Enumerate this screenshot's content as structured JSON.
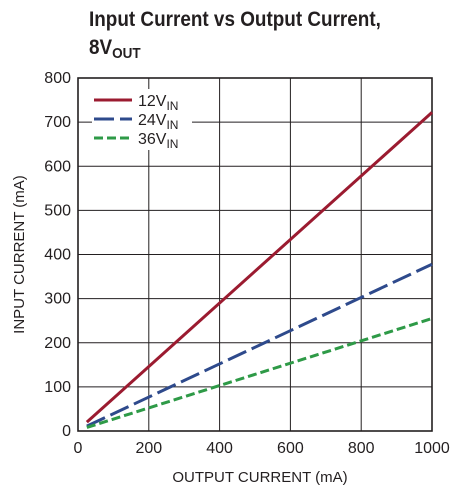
{
  "chart_data": {
    "type": "line",
    "title_line1": "Input Current vs Output Current,",
    "title_line2_base": "8V",
    "title_line2_sub": "OUT",
    "xlabel": "OUTPUT CURRENT (mA)",
    "ylabel": "INPUT CURRENT (mA)",
    "xlim": [
      0,
      1000
    ],
    "ylim": [
      0,
      800
    ],
    "xticks": [
      0,
      200,
      400,
      600,
      800,
      1000
    ],
    "yticks": [
      0,
      100,
      200,
      300,
      400,
      500,
      600,
      700,
      800
    ],
    "grid": true,
    "legend_position": "top-left",
    "series": [
      {
        "name_base": "12V",
        "name_sub": "IN",
        "color": "#9b1b30",
        "dash": "solid",
        "x": [
          25,
          1000
        ],
        "y": [
          20,
          722
        ]
      },
      {
        "name_base": "24V",
        "name_sub": "IN",
        "color": "#2e4a8c",
        "dash": "long-dash",
        "x": [
          25,
          1000
        ],
        "y": [
          11,
          378
        ]
      },
      {
        "name_base": "36V",
        "name_sub": "IN",
        "color": "#2e9a47",
        "dash": "short-dash",
        "x": [
          25,
          1000
        ],
        "y": [
          8,
          255
        ]
      }
    ]
  }
}
